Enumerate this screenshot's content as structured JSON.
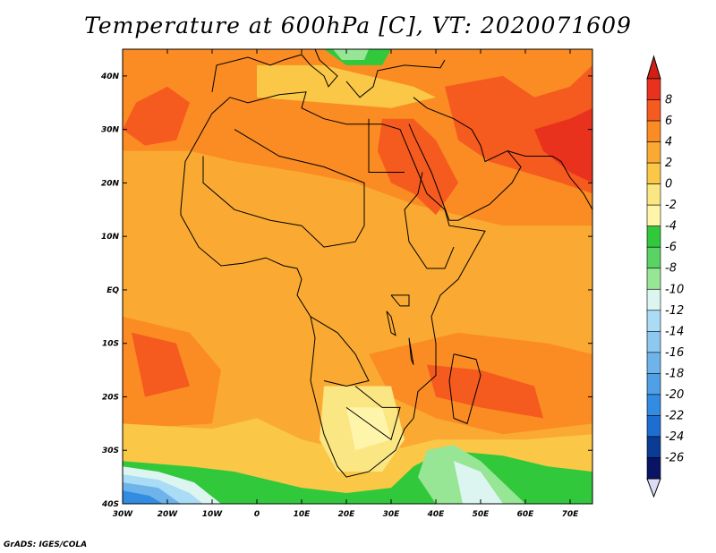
{
  "title": "Temperature at 600hPa [C], VT: 2020071609",
  "credit": "GrADS: IGES/COLA",
  "map": {
    "lon_range": [
      -30,
      75
    ],
    "lat_range": [
      -40,
      45
    ],
    "lon_ticks": [
      "30W",
      "20W",
      "10W",
      "0",
      "10E",
      "20E",
      "30E",
      "40E",
      "50E",
      "60E",
      "70E"
    ],
    "lat_ticks": [
      "40N",
      "30N",
      "20N",
      "10N",
      "EQ",
      "10S",
      "20S",
      "30S",
      "40S"
    ]
  },
  "colorbar": {
    "labels": [
      "8",
      "6",
      "4",
      "2",
      "0",
      "-2",
      "-4",
      "-6",
      "-8",
      "-10",
      "-12",
      "-14",
      "-16",
      "-18",
      "-20",
      "-22",
      "-24",
      "-26"
    ],
    "colors": [
      "#e8321e",
      "#f55a1e",
      "#fa8c23",
      "#faaa32",
      "#fac846",
      "#fae682",
      "#fff5aa",
      "#32c83c",
      "#5ad264",
      "#96e696",
      "#dcf5f0",
      "#aadcf5",
      "#8cc8f0",
      "#6eb4eb",
      "#50a0e6",
      "#328ce1",
      "#1e6ed2",
      "#0a3c96",
      "#0a1464"
    ],
    "top_arrow_color": "#d21e14",
    "bottom_arrow_color": "#dcdcf5"
  },
  "field_colors": {
    "base": "#faaa32",
    "warm": "#fa8c23",
    "hot": "#f55a1e",
    "hottest": "#e8321e",
    "mild": "#fac846",
    "cool": "#fae682",
    "cooler": "#fff5aa",
    "green": "#32c83c",
    "lightgreen": "#96e696",
    "pale": "#dcf5f0",
    "blue1": "#aadcf5",
    "blue2": "#6eb4eb",
    "blue3": "#328ce1"
  }
}
